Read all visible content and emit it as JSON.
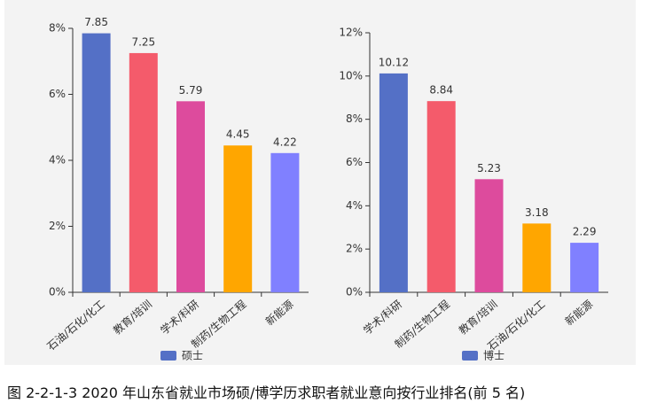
{
  "chart_data": [
    {
      "type": "bar",
      "categories": [
        "石油/石化/化工",
        "教育/培训",
        "学术/科研",
        "制药/生物工程",
        "新能源"
      ],
      "series": [
        {
          "name": "硕士",
          "values": [
            7.85,
            7.25,
            5.79,
            4.45,
            4.22
          ],
          "colors": [
            "#5470c6",
            "#f45b6b",
            "#dd4b9d",
            "#ffa600",
            "#8080ff"
          ]
        }
      ],
      "ylim": [
        0,
        8
      ],
      "yticks": [
        {
          "value": 0,
          "label": "0%"
        },
        {
          "value": 2,
          "label": "2%"
        },
        {
          "value": 4,
          "label": "4%"
        },
        {
          "value": 6,
          "label": "6%"
        },
        {
          "value": 8,
          "label": "8%"
        }
      ]
    },
    {
      "type": "bar",
      "categories": [
        "学术/科研",
        "制药/生物工程",
        "教育/培训",
        "石油/石化/化工",
        "新能源"
      ],
      "series": [
        {
          "name": "博士",
          "values": [
            10.12,
            8.84,
            5.23,
            3.18,
            2.29
          ],
          "colors": [
            "#5470c6",
            "#f45b6b",
            "#dd4b9d",
            "#ffa600",
            "#8080ff"
          ]
        }
      ],
      "ylim": [
        0,
        12
      ],
      "yticks": [
        {
          "value": 0,
          "label": "0%"
        },
        {
          "value": 2,
          "label": "2%"
        },
        {
          "value": 4,
          "label": "4%"
        },
        {
          "value": 6,
          "label": "6%"
        },
        {
          "value": 8,
          "label": "8%"
        },
        {
          "value": 10,
          "label": "10%"
        },
        {
          "value": 12,
          "label": "12%"
        }
      ]
    }
  ],
  "caption": "图 2-2-1-3 2020 年山东省就业市场硕/博学历求职者就业意向按行业排名(前 5 名)"
}
